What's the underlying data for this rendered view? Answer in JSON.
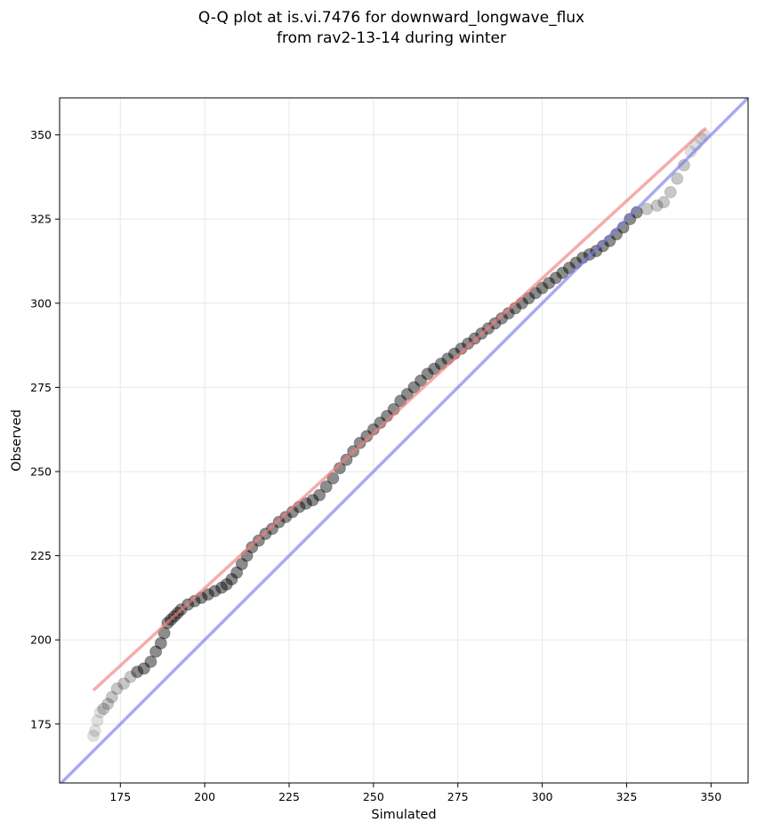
{
  "chart_data": {
    "type": "scatter",
    "title_lines": [
      "Q-Q plot at is.vi.7476 for downward_longwave_flux",
      "from rav2-13-14 during winter"
    ],
    "xlabel": "Simulated",
    "ylabel": "Observed",
    "xlim": [
      157,
      361
    ],
    "ylim": [
      157.5,
      361
    ],
    "xticks": [
      175,
      200,
      225,
      250,
      275,
      300,
      325,
      350
    ],
    "yticks": [
      175,
      200,
      225,
      250,
      275,
      300,
      325,
      350
    ],
    "grid": true,
    "colors": {
      "points": "#000000",
      "fit_line": "#f08080",
      "identity_line": "#7b7bf0"
    },
    "identity_line": {
      "x": [
        157,
        361
      ],
      "y": [
        157,
        361
      ]
    },
    "fit_line": {
      "x": [
        167,
        348.5
      ],
      "y": [
        185,
        352
      ]
    },
    "points": {
      "x": [
        167,
        167.5,
        168.2,
        169,
        170,
        171.3,
        172.5,
        174,
        176,
        178,
        180,
        182,
        184,
        185.5,
        187,
        188,
        189,
        190,
        191,
        192,
        193,
        195,
        197,
        199,
        201,
        203,
        205,
        206.5,
        208,
        209.5,
        211,
        212.5,
        214,
        216,
        218,
        220,
        222,
        224,
        226,
        228,
        230,
        232,
        234,
        236,
        238,
        240,
        242,
        244,
        246,
        248,
        250,
        252,
        254,
        256,
        258,
        260,
        262,
        264,
        266,
        268,
        270,
        272,
        274,
        276,
        278,
        280,
        282,
        284,
        286,
        288,
        290,
        292,
        294,
        296,
        298,
        300,
        302,
        304,
        306,
        308,
        310,
        312,
        314,
        316,
        318,
        320,
        322,
        324,
        326,
        328,
        331,
        334,
        336,
        338,
        340,
        342,
        344,
        345.5,
        347,
        348
      ],
      "y": [
        171.5,
        173,
        176,
        178.5,
        179.5,
        181,
        183,
        185.5,
        187,
        189,
        190.5,
        191.5,
        193.5,
        196.5,
        199,
        202,
        205,
        206,
        207,
        208,
        209,
        210.5,
        211.5,
        212.5,
        213.5,
        214.5,
        215.5,
        216.5,
        218,
        220,
        222.5,
        225,
        227.5,
        229.5,
        231.5,
        233,
        235,
        236.5,
        238,
        239.5,
        240.5,
        241.5,
        243,
        245.5,
        248,
        251,
        253.5,
        256,
        258.5,
        260.5,
        262.5,
        264.5,
        266.5,
        268.5,
        271,
        273,
        275,
        277,
        279,
        280.5,
        282,
        283.5,
        285,
        286.5,
        288,
        289.5,
        291,
        292.5,
        294,
        295.5,
        297,
        298.5,
        300,
        301.5,
        303,
        304.5,
        306,
        307.5,
        309,
        310.5,
        312,
        313.5,
        314.5,
        315.5,
        317,
        318.5,
        320.5,
        322.5,
        325,
        327,
        328,
        329,
        330,
        333,
        337,
        341,
        345,
        347,
        349,
        350
      ]
    }
  }
}
